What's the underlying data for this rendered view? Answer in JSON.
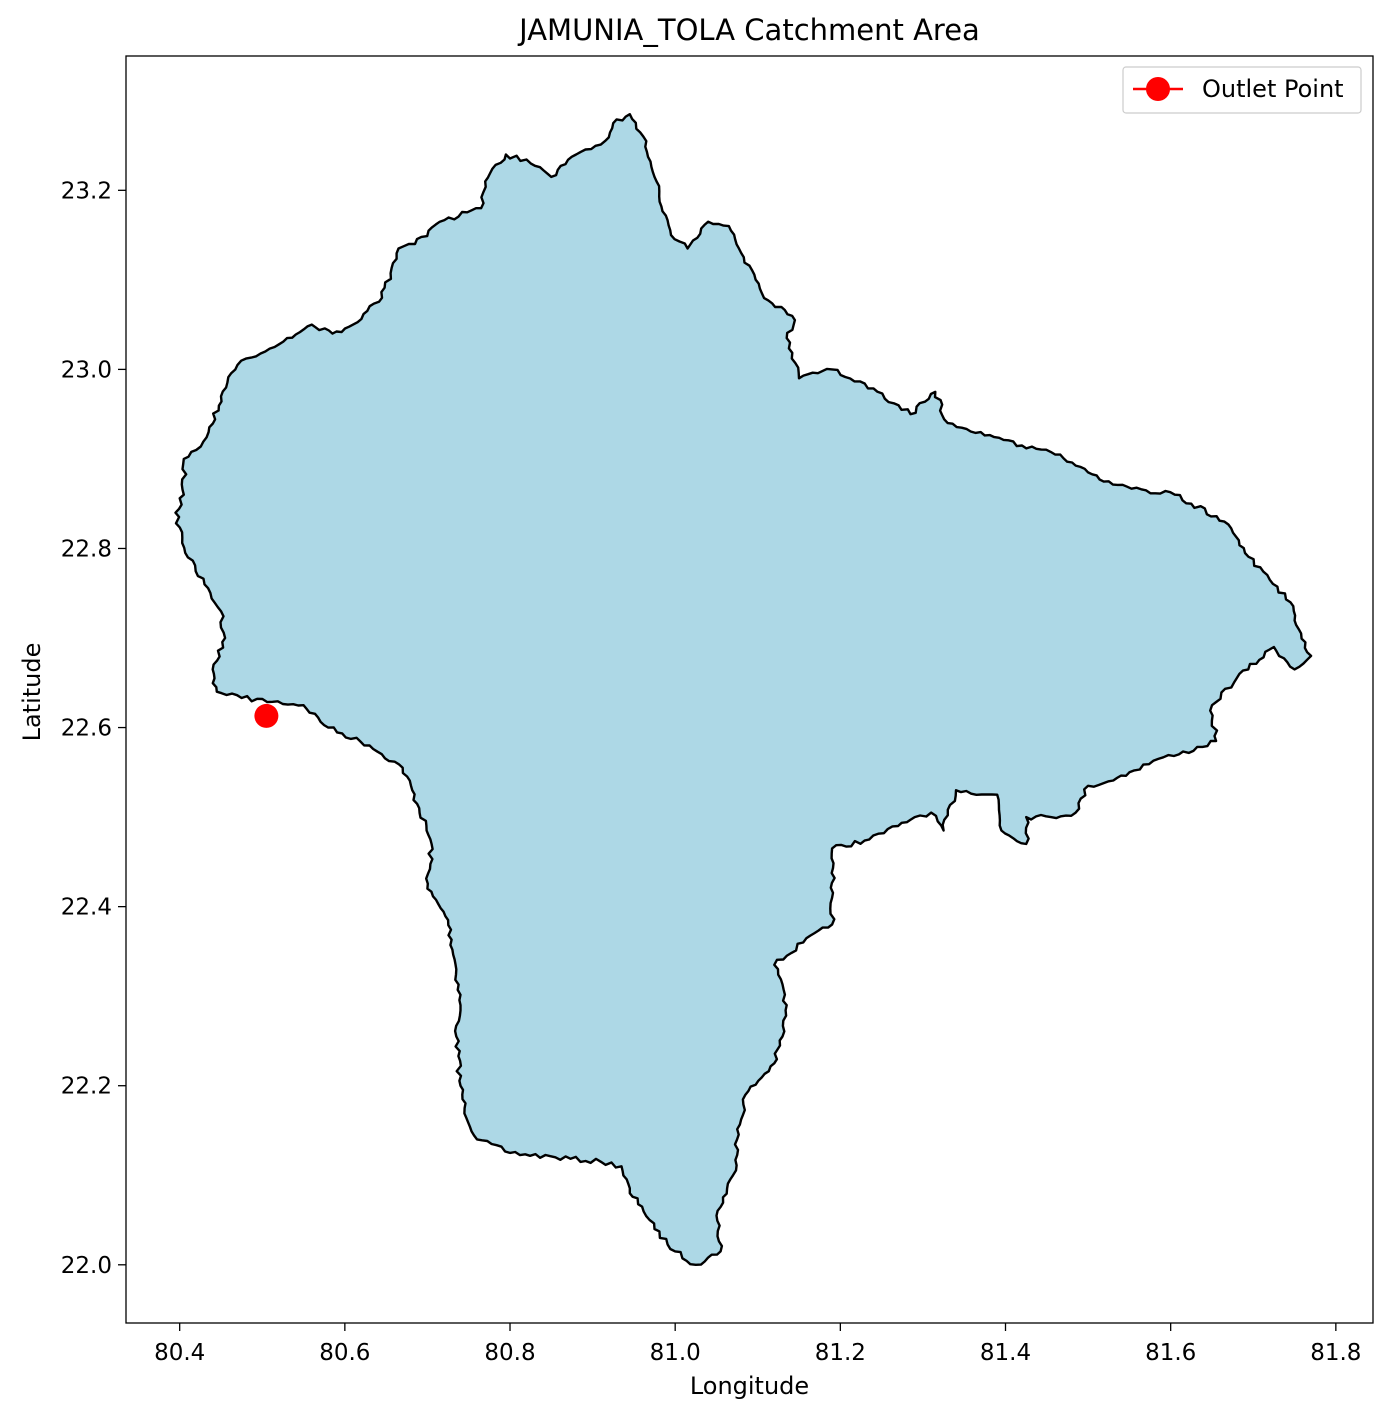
{
  "chart_data": {
    "type": "map",
    "title": "JAMUNIA_TOLA Catchment Area",
    "xlabel": "Longitude",
    "ylabel": "Latitude",
    "xlim": [
      80.335,
      81.845
    ],
    "ylim": [
      21.935,
      23.35
    ],
    "x_ticks": [
      {
        "value": 80.4,
        "label": "80.4"
      },
      {
        "value": 80.6,
        "label": "80.6"
      },
      {
        "value": 80.8,
        "label": "80.8"
      },
      {
        "value": 81.0,
        "label": "81.0"
      },
      {
        "value": 81.2,
        "label": "81.2"
      },
      {
        "value": 81.4,
        "label": "81.4"
      },
      {
        "value": 81.6,
        "label": "81.6"
      },
      {
        "value": 81.8,
        "label": "81.8"
      }
    ],
    "y_ticks": [
      {
        "value": 22.0,
        "label": "22.0"
      },
      {
        "value": 22.2,
        "label": "22.2"
      },
      {
        "value": 22.4,
        "label": "22.4"
      },
      {
        "value": 22.6,
        "label": "22.6"
      },
      {
        "value": 22.8,
        "label": "22.8"
      },
      {
        "value": 23.0,
        "label": "23.0"
      },
      {
        "value": 23.2,
        "label": "23.2"
      }
    ],
    "grid": false,
    "legend_position": "upper right",
    "legend": [
      {
        "label": "Outlet Point",
        "color": "#ff0000",
        "marker": "circle"
      }
    ],
    "catchment": {
      "fill_color": "#add8e6",
      "edge_color": "#000000",
      "boundary": [
        [
          80.475,
          22.633
        ],
        [
          80.55,
          22.625
        ],
        [
          80.58,
          22.6
        ],
        [
          80.63,
          22.58
        ],
        [
          80.67,
          22.555
        ],
        [
          80.69,
          22.51
        ],
        [
          80.705,
          22.47
        ],
        [
          80.7,
          22.42
        ],
        [
          80.725,
          22.385
        ],
        [
          80.735,
          22.33
        ],
        [
          80.74,
          22.29
        ],
        [
          80.735,
          22.255
        ],
        [
          80.74,
          22.2
        ],
        [
          80.745,
          22.175
        ],
        [
          80.76,
          22.14
        ],
        [
          80.8,
          22.125
        ],
        [
          80.855,
          22.12
        ],
        [
          80.91,
          22.115
        ],
        [
          80.935,
          22.11
        ],
        [
          80.945,
          22.08
        ],
        [
          80.96,
          22.065
        ],
        [
          80.975,
          22.04
        ],
        [
          81.0,
          22.015
        ],
        [
          81.025,
          22.0
        ],
        [
          81.055,
          22.015
        ],
        [
          81.05,
          22.055
        ],
        [
          81.07,
          22.1
        ],
        [
          81.075,
          22.14
        ],
        [
          81.085,
          22.19
        ],
        [
          81.12,
          22.225
        ],
        [
          81.13,
          22.255
        ],
        [
          81.135,
          22.29
        ],
        [
          81.12,
          22.335
        ],
        [
          81.155,
          22.36
        ],
        [
          81.19,
          22.38
        ],
        [
          81.19,
          22.41
        ],
        [
          81.19,
          22.465
        ],
        [
          81.235,
          22.475
        ],
        [
          81.27,
          22.49
        ],
        [
          81.29,
          22.5
        ],
        [
          81.31,
          22.505
        ],
        [
          81.325,
          22.485
        ],
        [
          81.34,
          22.53
        ],
        [
          81.39,
          22.525
        ],
        [
          81.395,
          22.485
        ],
        [
          81.425,
          22.47
        ],
        [
          81.425,
          22.5
        ],
        [
          81.455,
          22.5
        ],
        [
          81.485,
          22.505
        ],
        [
          81.5,
          22.535
        ],
        [
          81.525,
          22.54
        ],
        [
          81.55,
          22.55
        ],
        [
          81.585,
          22.565
        ],
        [
          81.61,
          22.57
        ],
        [
          81.655,
          22.585
        ],
        [
          81.65,
          22.625
        ],
        [
          81.68,
          22.655
        ],
        [
          81.725,
          22.69
        ],
        [
          81.75,
          22.665
        ],
        [
          81.77,
          22.68
        ],
        [
          81.755,
          22.71
        ],
        [
          81.745,
          22.74
        ],
        [
          81.72,
          22.765
        ],
        [
          81.69,
          22.795
        ],
        [
          81.665,
          22.83
        ],
        [
          81.625,
          22.85
        ],
        [
          81.605,
          22.86
        ],
        [
          81.57,
          22.865
        ],
        [
          81.525,
          22.875
        ],
        [
          81.5,
          22.885
        ],
        [
          81.46,
          22.905
        ],
        [
          81.42,
          22.915
        ],
        [
          81.37,
          22.93
        ],
        [
          81.33,
          22.94
        ],
        [
          81.315,
          22.975
        ],
        [
          81.285,
          22.95
        ],
        [
          81.245,
          22.975
        ],
        [
          81.19,
          23.0
        ],
        [
          81.15,
          22.99
        ],
        [
          81.135,
          23.035
        ],
        [
          81.145,
          23.055
        ],
        [
          81.105,
          23.085
        ],
        [
          81.08,
          23.13
        ],
        [
          81.065,
          23.16
        ],
        [
          81.04,
          23.165
        ],
        [
          81.015,
          23.135
        ],
        [
          80.995,
          23.15
        ],
        [
          80.975,
          23.215
        ],
        [
          80.965,
          23.255
        ],
        [
          80.945,
          23.285
        ],
        [
          80.925,
          23.275
        ],
        [
          80.915,
          23.255
        ],
        [
          80.88,
          23.24
        ],
        [
          80.85,
          23.215
        ],
        [
          80.825,
          23.23
        ],
        [
          80.795,
          23.24
        ],
        [
          80.77,
          23.21
        ],
        [
          80.765,
          23.18
        ],
        [
          80.715,
          23.165
        ],
        [
          80.685,
          23.14
        ],
        [
          80.665,
          23.135
        ],
        [
          80.645,
          23.08
        ],
        [
          80.61,
          23.05
        ],
        [
          80.585,
          23.04
        ],
        [
          80.56,
          23.05
        ],
        [
          80.53,
          23.035
        ],
        [
          80.515,
          23.025
        ],
        [
          80.47,
          23.005
        ],
        [
          80.45,
          22.97
        ],
        [
          80.435,
          22.93
        ],
        [
          80.42,
          22.91
        ],
        [
          80.405,
          22.9
        ],
        [
          80.405,
          22.86
        ],
        [
          80.395,
          22.84
        ],
        [
          80.41,
          22.79
        ],
        [
          80.43,
          22.76
        ],
        [
          80.45,
          22.73
        ],
        [
          80.455,
          22.7
        ],
        [
          80.44,
          22.665
        ],
        [
          80.445,
          22.64
        ]
      ]
    },
    "outlet_point": {
      "label": "Outlet Point",
      "lon": 80.505,
      "lat": 22.613,
      "color": "#ff0000"
    }
  }
}
